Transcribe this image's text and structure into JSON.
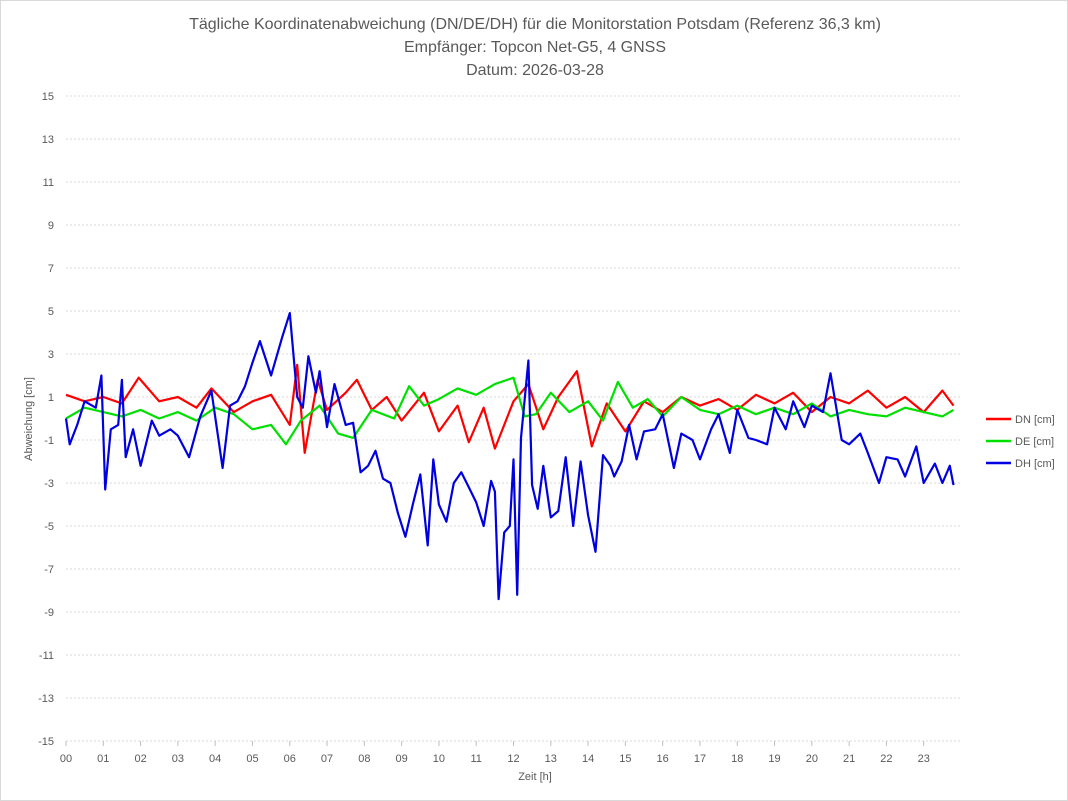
{
  "chart_data": {
    "type": "line",
    "title_lines": [
      "Tägliche Koordinatenabweichung (DN/DE/DH) für die Monitorstation Potsdam (Referenz 36,3 km)",
      "Empfänger: Topcon Net-G5, 4 GNSS",
      "Datum: 2026-03-28"
    ],
    "xlabel": "Zeit [h]",
    "ylabel": "Abweichung [cm]",
    "xlim": [
      0,
      24
    ],
    "ylim": [
      -15,
      15
    ],
    "x_ticks": [
      "00",
      "01",
      "02",
      "03",
      "04",
      "05",
      "06",
      "07",
      "08",
      "09",
      "10",
      "11",
      "12",
      "13",
      "14",
      "15",
      "16",
      "17",
      "18",
      "19",
      "20",
      "21",
      "22",
      "23"
    ],
    "y_ticks": [
      15,
      13,
      11,
      9,
      7,
      5,
      3,
      1,
      -1,
      -3,
      -5,
      -7,
      -9,
      -11,
      -13,
      -15
    ],
    "y_tick_labels": [
      "15",
      "13",
      "11",
      "9",
      "7",
      "5",
      "3",
      "1",
      "-1",
      "-3",
      "-5",
      "-7",
      "-9",
      "-11",
      "-13",
      "-15"
    ],
    "grid": true,
    "legend_position": "right",
    "series": [
      {
        "name": "DN [cm]",
        "color": "#ff0000",
        "x": [
          0.0,
          0.5,
          1.0,
          1.5,
          1.95,
          2.5,
          3.0,
          3.5,
          3.9,
          4.5,
          5.0,
          5.5,
          6.0,
          6.2,
          6.4,
          6.75,
          7.0,
          7.5,
          7.8,
          8.2,
          8.6,
          9.0,
          9.6,
          10.0,
          10.5,
          10.8,
          11.2,
          11.5,
          12.0,
          12.4,
          12.8,
          13.2,
          13.7,
          14.1,
          14.5,
          15.0,
          15.5,
          16.0,
          16.5,
          17.0,
          17.5,
          18.0,
          18.5,
          19.0,
          19.5,
          20.0,
          20.5,
          21.0,
          21.5,
          22.0,
          22.5,
          23.0,
          23.5,
          23.8
        ],
        "y": [
          1.1,
          0.8,
          1.0,
          0.7,
          1.9,
          0.8,
          1.0,
          0.5,
          1.4,
          0.3,
          0.8,
          1.1,
          -0.3,
          2.5,
          -1.6,
          1.8,
          0.4,
          1.2,
          1.8,
          0.4,
          1.0,
          -0.1,
          1.2,
          -0.6,
          0.6,
          -1.1,
          0.5,
          -1.4,
          0.8,
          1.6,
          -0.5,
          1.0,
          2.2,
          -1.3,
          0.7,
          -0.6,
          0.8,
          0.3,
          1.0,
          0.6,
          0.9,
          0.4,
          1.1,
          0.7,
          1.2,
          0.3,
          1.0,
          0.7,
          1.3,
          0.5,
          1.0,
          0.3,
          1.3,
          0.6
        ]
      },
      {
        "name": "DE [cm]",
        "color": "#00e000",
        "x": [
          0.0,
          0.5,
          1.0,
          1.5,
          2.0,
          2.5,
          3.0,
          3.5,
          4.0,
          4.5,
          5.0,
          5.5,
          5.9,
          6.3,
          6.8,
          7.3,
          7.7,
          8.2,
          8.8,
          9.2,
          9.6,
          10.0,
          10.5,
          11.0,
          11.5,
          12.0,
          12.3,
          12.6,
          13.0,
          13.5,
          14.0,
          14.4,
          14.8,
          15.2,
          15.6,
          16.0,
          16.5,
          17.0,
          17.5,
          18.0,
          18.5,
          19.0,
          19.5,
          20.0,
          20.5,
          21.0,
          21.5,
          22.0,
          22.5,
          23.0,
          23.5,
          23.8
        ],
        "y": [
          0.0,
          0.5,
          0.3,
          0.1,
          0.4,
          0.0,
          0.3,
          -0.1,
          0.5,
          0.2,
          -0.5,
          -0.3,
          -1.2,
          -0.1,
          0.6,
          -0.7,
          -0.9,
          0.4,
          0.0,
          1.5,
          0.6,
          0.9,
          1.4,
          1.1,
          1.6,
          1.9,
          0.1,
          0.2,
          1.2,
          0.3,
          0.8,
          -0.1,
          1.7,
          0.5,
          0.9,
          0.1,
          1.0,
          0.4,
          0.2,
          0.6,
          0.2,
          0.5,
          0.2,
          0.7,
          0.1,
          0.4,
          0.2,
          0.1,
          0.5,
          0.3,
          0.1,
          0.4
        ]
      },
      {
        "name": "DH [cm]",
        "color": "#0000e0",
        "x": [
          0.0,
          0.1,
          0.3,
          0.5,
          0.8,
          0.95,
          1.05,
          1.2,
          1.4,
          1.5,
          1.6,
          1.8,
          2.0,
          2.3,
          2.5,
          2.8,
          3.0,
          3.3,
          3.6,
          3.9,
          4.2,
          4.4,
          4.6,
          4.8,
          5.0,
          5.2,
          5.5,
          5.8,
          6.0,
          6.2,
          6.35,
          6.5,
          6.7,
          6.8,
          7.0,
          7.2,
          7.5,
          7.7,
          7.9,
          8.1,
          8.3,
          8.5,
          8.7,
          8.9,
          9.1,
          9.3,
          9.5,
          9.7,
          9.85,
          10.0,
          10.2,
          10.4,
          10.6,
          10.8,
          11.0,
          11.2,
          11.4,
          11.5,
          11.6,
          11.75,
          11.9,
          12.0,
          12.1,
          12.2,
          12.4,
          12.5,
          12.65,
          12.8,
          13.0,
          13.2,
          13.4,
          13.6,
          13.8,
          14.0,
          14.2,
          14.4,
          14.6,
          14.7,
          14.9,
          15.1,
          15.3,
          15.5,
          15.8,
          16.0,
          16.3,
          16.5,
          16.8,
          17.0,
          17.3,
          17.5,
          17.8,
          18.0,
          18.3,
          18.5,
          18.8,
          19.0,
          19.3,
          19.5,
          19.8,
          20.0,
          20.3,
          20.5,
          20.8,
          21.0,
          21.3,
          21.5,
          21.8,
          22.0,
          22.3,
          22.5,
          22.8,
          23.0,
          23.3,
          23.5,
          23.7,
          23.8
        ],
        "y": [
          0.0,
          -1.2,
          -0.3,
          0.8,
          0.5,
          2.0,
          -3.3,
          -0.5,
          -0.3,
          1.8,
          -1.8,
          -0.5,
          -2.2,
          -0.1,
          -0.8,
          -0.5,
          -0.8,
          -1.8,
          0.1,
          1.3,
          -2.3,
          0.6,
          0.8,
          1.5,
          2.6,
          3.6,
          2.0,
          3.8,
          4.9,
          1.0,
          0.5,
          2.9,
          1.2,
          2.2,
          -0.4,
          1.6,
          -0.3,
          -0.2,
          -2.5,
          -2.2,
          -1.5,
          -2.8,
          -3.0,
          -4.4,
          -5.5,
          -4.0,
          -2.6,
          -5.9,
          -1.9,
          -4.0,
          -4.8,
          -3.0,
          -2.5,
          -3.2,
          -3.9,
          -5.0,
          -2.9,
          -3.4,
          -8.4,
          -5.3,
          -5.0,
          -1.9,
          -8.2,
          -0.9,
          2.7,
          -3.1,
          -4.2,
          -2.2,
          -4.6,
          -4.3,
          -1.8,
          -5.0,
          -2.0,
          -4.5,
          -6.2,
          -1.7,
          -2.2,
          -2.7,
          -2.0,
          -0.3,
          -1.9,
          -0.6,
          -0.5,
          0.2,
          -2.3,
          -0.7,
          -1.0,
          -1.9,
          -0.5,
          0.2,
          -1.6,
          0.4,
          -0.9,
          -1.0,
          -1.2,
          0.5,
          -0.5,
          0.8,
          -0.4,
          0.6,
          0.3,
          2.1,
          -1.0,
          -1.2,
          -0.7,
          -1.6,
          -3.0,
          -1.8,
          -1.9,
          -2.7,
          -1.3,
          -3.0,
          -2.1,
          -3.0,
          -2.2,
          -3.1
        ]
      }
    ]
  }
}
